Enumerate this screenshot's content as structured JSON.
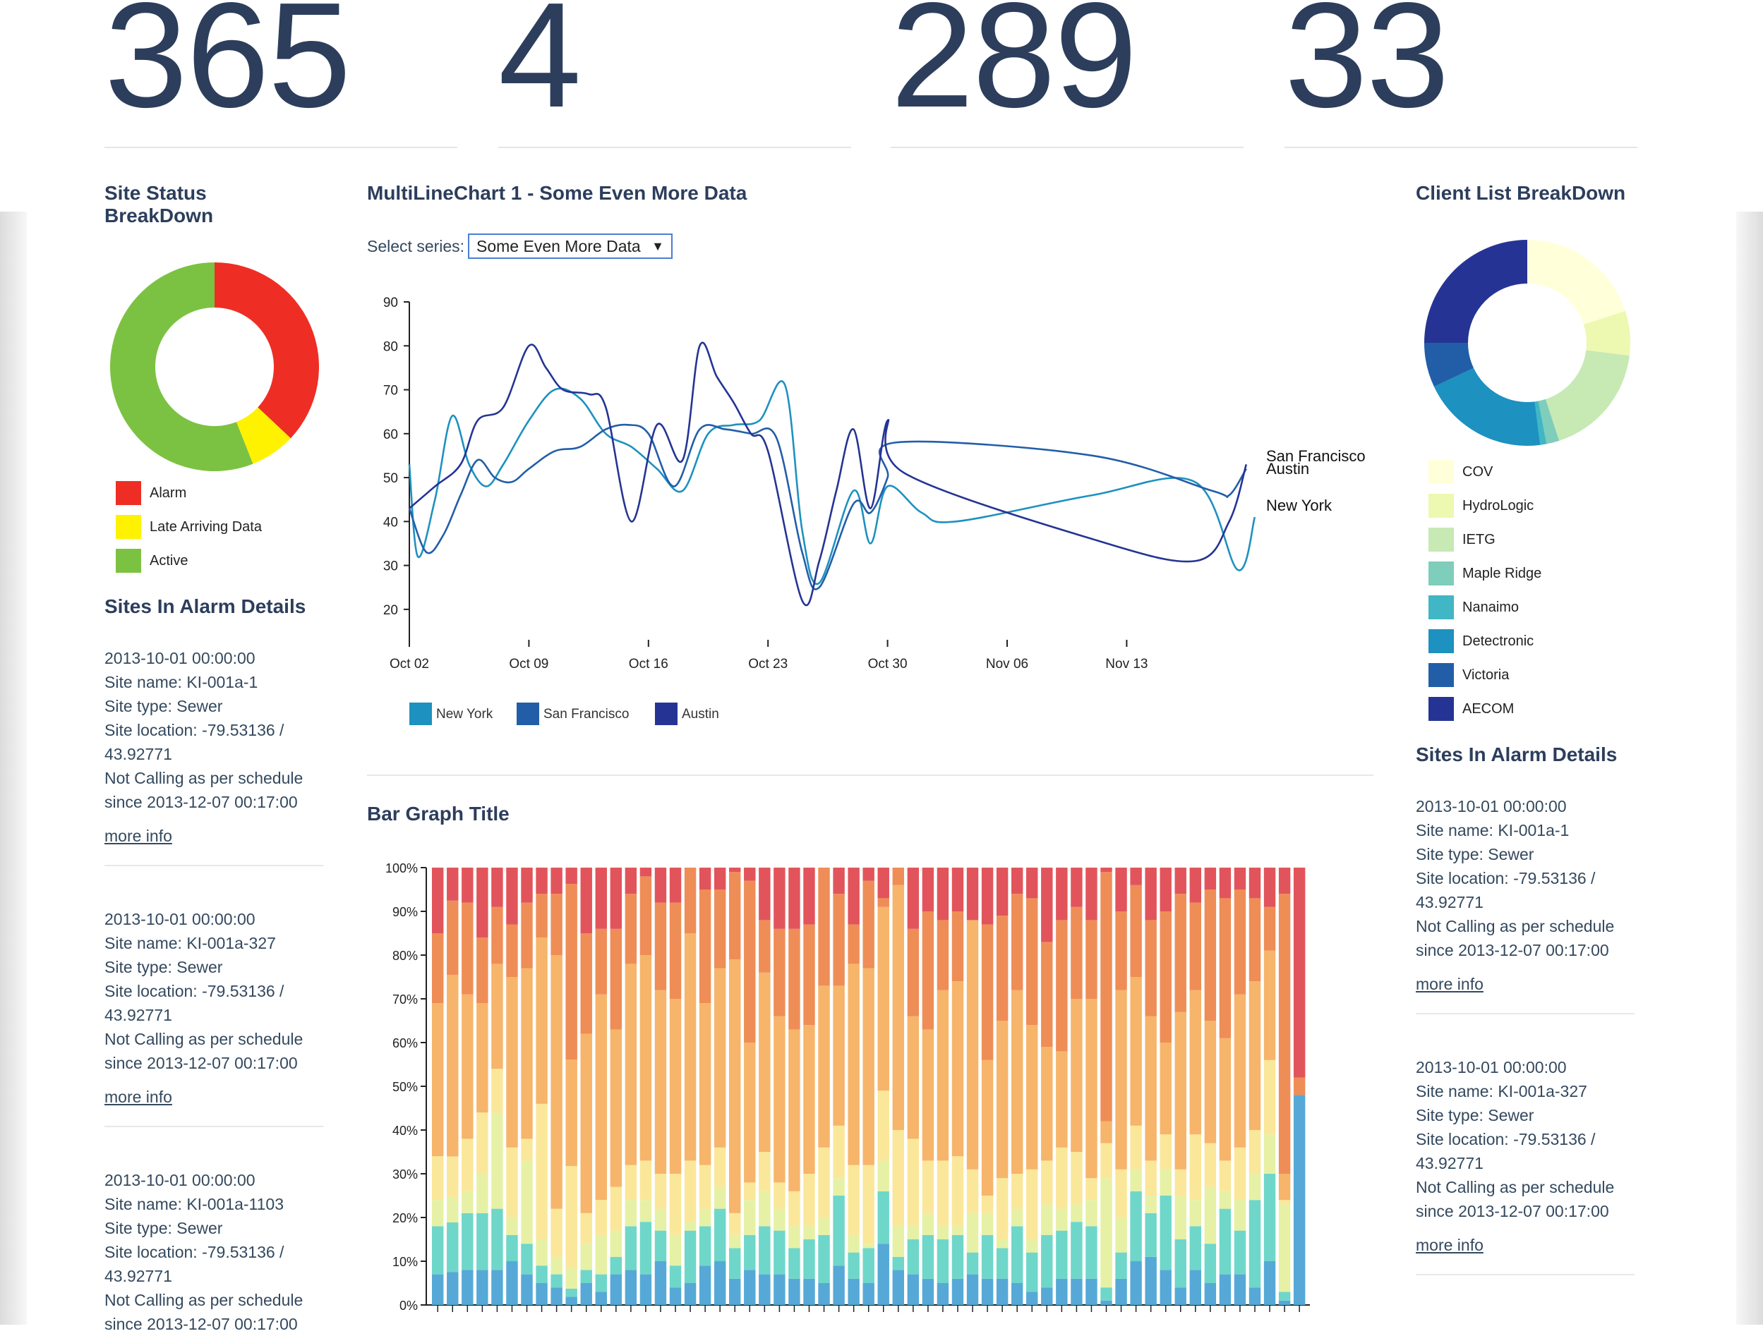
{
  "kpis": [
    "365",
    "4",
    "289",
    "33"
  ],
  "site_status": {
    "title": "Site Status BreakDown",
    "legend": [
      {
        "label": "Alarm",
        "color": "#ee2e24",
        "value": 0.37
      },
      {
        "label": "Late Arriving Data",
        "color": "#fff200",
        "value": 0.07
      },
      {
        "label": "Active",
        "color": "#7cc242",
        "value": 0.56
      }
    ]
  },
  "left_alarms": {
    "title": "Sites In Alarm Details",
    "items": [
      {
        "date": "2013-10-01 00:00:00",
        "name": "Site name: KI-001a-1",
        "type": "Site type: Sewer",
        "loc1": "Site location: -79.53136 /",
        "loc2": "43.92771",
        "status1": "Not Calling as per schedule",
        "status2": "since 2013-12-07 00:17:00",
        "more": "more info"
      },
      {
        "date": "2013-10-01 00:00:00",
        "name": "Site name: KI-001a-327",
        "type": "Site type: Sewer",
        "loc1": "Site location: -79.53136 /",
        "loc2": "43.92771",
        "status1": "Not Calling as per schedule",
        "status2": "since 2013-12-07 00:17:00",
        "more": "more info"
      },
      {
        "date": "2013-10-01 00:00:00",
        "name": "Site name: KI-001a-1103",
        "type": "Site type: Sewer",
        "loc1": "Site location: -79.53136 /",
        "loc2": "43.92771",
        "status1": "Not Calling as per schedule",
        "status2": "since 2013-12-07 00:17:00",
        "more": ""
      }
    ]
  },
  "multiline": {
    "title": "MultiLineChart 1 - Some Even More Data",
    "select_label": "Select series:",
    "select_value": "Some Even More Data"
  },
  "client_list": {
    "title": "Client List BreakDown",
    "legend": [
      {
        "label": "COV",
        "color": "#ffffd9",
        "value": 0.2
      },
      {
        "label": "HydroLogic",
        "color": "#edf8b1",
        "value": 0.07
      },
      {
        "label": "IETG",
        "color": "#c7e9b4",
        "value": 0.18
      },
      {
        "label": "Maple Ridge",
        "color": "#7fcdbb",
        "value": 0.02
      },
      {
        "label": "Nanaimo",
        "color": "#41b6c4",
        "value": 0.01
      },
      {
        "label": "Detectronic",
        "color": "#1d91c0",
        "value": 0.2
      },
      {
        "label": "Victoria",
        "color": "#225ea8",
        "value": 0.07
      },
      {
        "label": "AECOM",
        "color": "#253494",
        "value": 0.25
      }
    ]
  },
  "right_alarms": {
    "title": "Sites In Alarm Details",
    "items": [
      {
        "date": "2013-10-01 00:00:00",
        "name": "Site name: KI-001a-1",
        "type": "Site type: Sewer",
        "loc1": "Site location: -79.53136 /",
        "loc2": "43.92771",
        "status1": "Not Calling as per schedule",
        "status2": "since 2013-12-07 00:17:00",
        "more": "more info"
      },
      {
        "date": "2013-10-01 00:00:00",
        "name": "Site name: KI-001a-327",
        "type": "Site type: Sewer",
        "loc1": "Site location: -79.53136 /",
        "loc2": "43.92771",
        "status1": "Not Calling as per schedule",
        "status2": "since 2013-12-07 00:17:00",
        "more": "more info"
      }
    ]
  },
  "bar_title": "Bar Graph Title",
  "chart_data": [
    {
      "type": "line",
      "x_ticks": [
        "Oct 02",
        "Oct 09",
        "Oct 16",
        "Oct 23",
        "Oct 30",
        "Nov 06",
        "Nov 13"
      ],
      "ylim": [
        15,
        90
      ],
      "y_ticks": [
        20,
        30,
        40,
        50,
        60,
        70,
        80,
        90
      ],
      "series": [
        {
          "name": "New York",
          "color": "#1d91c0",
          "points": [
            [
              0,
              53
            ],
            [
              0.5,
              32
            ],
            [
              1.5,
              45
            ],
            [
              2.5,
              64
            ],
            [
              3.5,
              53
            ],
            [
              4.5,
              48
            ],
            [
              5.5,
              53
            ],
            [
              7,
              63
            ],
            [
              8.5,
              70
            ],
            [
              10,
              68
            ],
            [
              11.5,
              60
            ],
            [
              13,
              57
            ],
            [
              14.5,
              52
            ],
            [
              16,
              47
            ],
            [
              17.5,
              60
            ],
            [
              19,
              62
            ],
            [
              20.5,
              63
            ],
            [
              22,
              71
            ],
            [
              23,
              38
            ],
            [
              24,
              26
            ],
            [
              26,
              47
            ],
            [
              27,
              35
            ],
            [
              28,
              48
            ],
            [
              30,
              42
            ],
            [
              32,
              40
            ],
            [
              40,
              46
            ],
            [
              46,
              49
            ],
            [
              48.5,
              29
            ],
            [
              49.5,
              41
            ]
          ]
        },
        {
          "name": "San Francisco",
          "color": "#225ea8",
          "points": [
            [
              0,
              43
            ],
            [
              1,
              33
            ],
            [
              2,
              37
            ],
            [
              3,
              46
            ],
            [
              4,
              54
            ],
            [
              5,
              50
            ],
            [
              6,
              49
            ],
            [
              7,
              52
            ],
            [
              8.5,
              56
            ],
            [
              10,
              57
            ],
            [
              11.5,
              61
            ],
            [
              12.8,
              62
            ],
            [
              14,
              60
            ],
            [
              15.5,
              48
            ],
            [
              17,
              61
            ],
            [
              18.5,
              61
            ],
            [
              20,
              60
            ],
            [
              21.5,
              59
            ],
            [
              23,
              33
            ],
            [
              24,
              25
            ],
            [
              26,
              44
            ],
            [
              27,
              42
            ],
            [
              28,
              50
            ],
            [
              28.5,
              58
            ],
            [
              40,
              55
            ],
            [
              47,
              47
            ],
            [
              48,
              46
            ],
            [
              49,
              52
            ]
          ]
        },
        {
          "name": "Austin",
          "color": "#253494",
          "points": [
            [
              0,
              43
            ],
            [
              1.5,
              48
            ],
            [
              3,
              53
            ],
            [
              4,
              63
            ],
            [
              5.5,
              66
            ],
            [
              7,
              80
            ],
            [
              8,
              75
            ],
            [
              9,
              70
            ],
            [
              10.5,
              69
            ],
            [
              11.5,
              66
            ],
            [
              13,
              40
            ],
            [
              14.5,
              62
            ],
            [
              16,
              54
            ],
            [
              17,
              80
            ],
            [
              18,
              73
            ],
            [
              19,
              67
            ],
            [
              20,
              60
            ],
            [
              21,
              56
            ],
            [
              23,
              22
            ],
            [
              24,
              31
            ],
            [
              25,
              47
            ],
            [
              26,
              61
            ],
            [
              27,
              43
            ],
            [
              28,
              63
            ],
            [
              29,
              51
            ],
            [
              40,
              36
            ],
            [
              46,
              31
            ],
            [
              48,
              40
            ],
            [
              49,
              53
            ]
          ]
        }
      ],
      "legend": [
        "New York",
        "San Francisco",
        "Austin"
      ]
    },
    {
      "type": "bar",
      "stacked": "percent",
      "y_ticks": [
        "0%",
        "10%",
        "20%",
        "30%",
        "40%",
        "50%",
        "60%",
        "70%",
        "80%",
        "90%",
        "100%"
      ],
      "segment_colors": [
        "#56a9d6",
        "#6ed7c9",
        "#e6f1a5",
        "#fbe79a",
        "#f6b56a",
        "#ef8d57",
        "#e2545b"
      ],
      "values": [
        [
          7,
          11,
          6,
          10,
          35,
          16,
          15
        ],
        [
          8,
          12,
          6,
          10,
          44,
          18,
          8
        ],
        [
          8,
          13,
          5,
          12,
          33,
          21,
          8
        ],
        [
          8,
          13,
          9,
          14,
          25,
          15,
          16
        ],
        [
          8,
          14,
          22,
          10,
          24,
          13,
          9
        ],
        [
          10,
          6,
          4,
          16,
          39,
          12,
          13
        ],
        [
          7,
          7,
          19,
          5,
          39,
          15,
          8
        ],
        [
          5,
          4,
          6,
          31,
          38,
          10,
          6
        ],
        [
          4,
          3,
          4,
          11,
          58,
          14,
          6
        ],
        [
          2,
          2,
          5,
          25,
          26,
          43,
          4
        ],
        [
          5,
          3,
          6,
          7,
          41,
          23,
          15
        ],
        [
          3,
          4,
          9,
          8,
          47,
          15,
          14
        ],
        [
          7,
          4,
          6,
          10,
          36,
          23,
          14
        ],
        [
          8,
          10,
          6,
          8,
          46,
          16,
          6
        ],
        [
          7,
          12,
          5,
          9,
          47,
          18,
          2
        ],
        [
          10,
          7,
          5,
          8,
          42,
          20,
          8
        ],
        [
          4,
          5,
          7,
          14,
          40,
          22,
          8
        ],
        [
          5,
          12,
          2,
          14,
          52,
          15,
          0
        ],
        [
          9,
          9,
          4,
          10,
          37,
          26,
          5
        ],
        [
          10,
          12,
          5,
          9,
          41,
          18,
          5
        ],
        [
          6,
          7,
          3,
          5,
          58,
          20,
          1
        ],
        [
          8,
          8,
          8,
          4,
          32,
          37,
          3
        ],
        [
          7,
          11,
          8,
          9,
          41,
          12,
          12
        ],
        [
          7,
          10,
          5,
          6,
          38,
          20,
          14
        ],
        [
          6,
          7,
          5,
          8,
          37,
          23,
          14
        ],
        [
          6,
          9,
          3,
          12,
          34,
          23,
          13
        ],
        [
          5,
          11,
          4,
          16,
          37,
          27,
          0
        ],
        [
          9,
          16,
          4,
          12,
          32,
          21,
          6
        ],
        [
          6,
          6,
          4,
          16,
          46,
          9,
          13
        ],
        [
          5,
          8,
          1,
          18,
          45,
          20,
          3
        ],
        [
          14,
          12,
          7,
          16,
          42,
          2,
          7
        ],
        [
          8,
          3,
          7,
          22,
          56,
          4,
          0
        ],
        [
          7,
          8,
          3,
          20,
          28,
          20,
          14
        ],
        [
          6,
          10,
          5,
          12,
          30,
          27,
          10
        ],
        [
          5,
          10,
          3,
          15,
          39,
          16,
          12
        ],
        [
          6,
          10,
          2,
          16,
          40,
          16,
          10
        ],
        [
          7,
          5,
          9,
          10,
          57,
          0,
          12
        ],
        [
          6,
          10,
          5,
          4,
          31,
          31,
          13
        ],
        [
          6,
          7,
          2,
          14,
          36,
          24,
          11
        ],
        [
          5,
          13,
          4,
          8,
          42,
          22,
          6
        ],
        [
          3,
          9,
          3,
          16,
          33,
          29,
          7
        ],
        [
          4,
          12,
          7,
          10,
          26,
          24,
          17
        ],
        [
          6,
          11,
          5,
          14,
          22,
          30,
          12
        ],
        [
          6,
          13,
          4,
          12,
          35,
          21,
          9
        ],
        [
          6,
          12,
          6,
          5,
          41,
          18,
          12
        ],
        [
          1,
          3,
          25,
          8,
          5,
          57,
          1
        ],
        [
          6,
          6,
          8,
          11,
          41,
          18,
          10
        ],
        [
          10,
          16,
          5,
          10,
          34,
          21,
          4
        ],
        [
          11,
          10,
          4,
          8,
          33,
          22,
          12
        ],
        [
          8,
          17,
          6,
          8,
          21,
          30,
          10
        ],
        [
          4,
          11,
          10,
          6,
          36,
          27,
          6
        ],
        [
          8,
          10,
          6,
          15,
          33,
          20,
          8
        ],
        [
          5,
          9,
          13,
          10,
          28,
          30,
          5
        ],
        [
          7,
          15,
          4,
          7,
          28,
          32,
          7
        ],
        [
          7,
          10,
          7,
          12,
          35,
          24,
          5
        ],
        [
          4,
          20,
          6,
          10,
          34,
          19,
          7
        ],
        [
          10,
          20,
          9,
          17,
          25,
          10,
          9
        ],
        [
          1,
          2,
          20,
          1,
          6,
          64,
          6
        ],
        [
          48,
          0,
          0,
          0,
          0,
          4,
          48
        ]
      ]
    }
  ]
}
